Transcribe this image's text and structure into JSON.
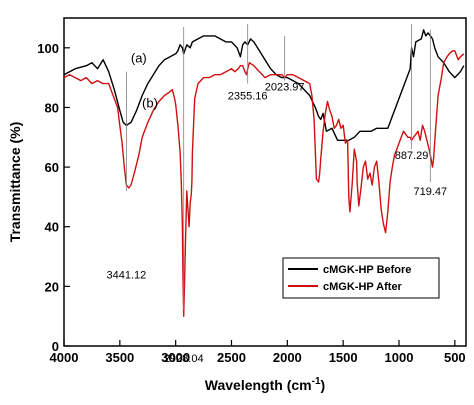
{
  "chart_data": {
    "type": "line",
    "xlabel": "Wavelength (cm",
    "xlabel_sup": "-1",
    "xlabel_tail": ")",
    "ylabel": "Transmittance (%)",
    "xlim": [
      4000,
      400
    ],
    "ylim": [
      0,
      110
    ],
    "x_ticks": [
      4000,
      3500,
      3000,
      2500,
      2000,
      1500,
      1000,
      500
    ],
    "y_ticks": [
      0,
      20,
      40,
      60,
      80,
      100
    ],
    "grid": false,
    "legend_position": "lower-right",
    "series": [
      {
        "name": "cMGK-HP Before",
        "color": "#000000",
        "curve_label": "(a)",
        "x": [
          4000,
          3900,
          3800,
          3750,
          3700,
          3650,
          3600,
          3550,
          3500,
          3470,
          3441,
          3400,
          3350,
          3300,
          3250,
          3200,
          3150,
          3100,
          3050,
          3000,
          2980,
          2960,
          2940,
          2928,
          2900,
          2870,
          2850,
          2800,
          2750,
          2700,
          2650,
          2600,
          2550,
          2500,
          2450,
          2420,
          2400,
          2380,
          2355,
          2330,
          2300,
          2250,
          2200,
          2150,
          2100,
          2050,
          2024,
          2000,
          1950,
          1900,
          1850,
          1800,
          1750,
          1720,
          1700,
          1680,
          1650,
          1600,
          1550,
          1500,
          1450,
          1400,
          1350,
          1300,
          1250,
          1200,
          1150,
          1100,
          1050,
          1000,
          950,
          900,
          887,
          870,
          850,
          800,
          780,
          760,
          740,
          719,
          700,
          680,
          650,
          600,
          550,
          500,
          450,
          420
        ],
        "y": [
          91,
          93,
          94,
          95,
          93,
          96,
          92,
          86,
          79,
          75,
          74,
          75,
          79,
          84,
          88,
          91,
          94,
          96,
          97,
          98,
          99,
          101,
          100,
          98,
          101,
          100,
          102,
          103,
          104,
          104,
          104,
          103,
          102,
          102,
          100,
          97,
          101,
          102,
          101,
          103,
          102,
          99,
          96,
          93,
          91,
          90,
          90,
          90,
          89,
          88,
          86,
          84,
          80,
          77,
          76,
          78,
          72,
          73,
          69,
          69,
          69,
          70,
          72,
          72,
          72,
          73,
          73,
          73,
          78,
          83,
          88,
          93,
          100,
          97,
          102,
          103,
          106,
          104,
          105,
          104,
          103,
          100,
          97,
          95,
          92,
          90,
          92,
          94
        ]
      },
      {
        "name": "cMGK-HP After",
        "color": "#d01010",
        "curve_label": "(b)",
        "x": [
          4000,
          3950,
          3900,
          3850,
          3800,
          3750,
          3700,
          3650,
          3600,
          3560,
          3520,
          3500,
          3480,
          3460,
          3441,
          3420,
          3400,
          3370,
          3330,
          3300,
          3250,
          3200,
          3150,
          3100,
          3060,
          3030,
          3010,
          3000,
          2980,
          2960,
          2950,
          2940,
          2935,
          2928,
          2920,
          2910,
          2900,
          2890,
          2880,
          2870,
          2860,
          2855,
          2850,
          2830,
          2800,
          2750,
          2700,
          2650,
          2600,
          2550,
          2500,
          2470,
          2440,
          2420,
          2400,
          2380,
          2365,
          2355,
          2340,
          2300,
          2250,
          2200,
          2150,
          2100,
          2050,
          2024,
          2000,
          1950,
          1900,
          1850,
          1800,
          1780,
          1760,
          1740,
          1720,
          1710,
          1700,
          1680,
          1660,
          1640,
          1620,
          1600,
          1580,
          1560,
          1540,
          1520,
          1500,
          1480,
          1460,
          1450,
          1440,
          1420,
          1400,
          1380,
          1375,
          1360,
          1340,
          1320,
          1300,
          1280,
          1260,
          1240,
          1220,
          1200,
          1180,
          1160,
          1140,
          1120,
          1100,
          1080,
          1060,
          1040,
          1020,
          1000,
          980,
          960,
          940,
          920,
          900,
          887,
          870,
          850,
          830,
          810,
          790,
          770,
          750,
          730,
          719,
          700,
          690,
          670,
          650,
          620,
          600,
          570,
          550,
          520,
          500,
          470,
          450,
          420
        ],
        "y": [
          90,
          91,
          90,
          89,
          90,
          88,
          89,
          88,
          88,
          84,
          80,
          74,
          68,
          60,
          54,
          53,
          54,
          58,
          64,
          70,
          75,
          79,
          82,
          84,
          85,
          86,
          83,
          81,
          74,
          65,
          55,
          40,
          25,
          10,
          22,
          38,
          52,
          46,
          40,
          48,
          51,
          55,
          65,
          83,
          88,
          90,
          90,
          91,
          91,
          92,
          93,
          92,
          93,
          94,
          94,
          92,
          91,
          93,
          95,
          94,
          92,
          90,
          91,
          91,
          91,
          90,
          91,
          91,
          90,
          89,
          88,
          84,
          76,
          56,
          55,
          58,
          63,
          72,
          78,
          82,
          79,
          77,
          73,
          74,
          76,
          73,
          74,
          68,
          69,
          50,
          45,
          54,
          66,
          62,
          55,
          47,
          53,
          60,
          62,
          56,
          58,
          54,
          60,
          62,
          55,
          46,
          41,
          38,
          45,
          55,
          60,
          64,
          66,
          68,
          70,
          72,
          71,
          70,
          70,
          69,
          70,
          71,
          72,
          69,
          74,
          72,
          69,
          66,
          64,
          60,
          63,
          74,
          84,
          90,
          95,
          97,
          98,
          99,
          99,
          96,
          97,
          98
        ]
      }
    ],
    "peak_labels": [
      {
        "text": "3441.12",
        "x": 3441.12,
        "line_from": 92,
        "line_to": 52,
        "label_y": 24,
        "anchor": "middle"
      },
      {
        "text": "2928.04",
        "x": 2928.04,
        "line_from": 107,
        "line_to": 12,
        "label_y": -4,
        "anchor": "middle"
      },
      {
        "text": "2355.16",
        "x": 2355.16,
        "line_from": 108,
        "line_to": 88,
        "label_y": 84,
        "anchor": "middle"
      },
      {
        "text": "2023.97",
        "x": 2023.97,
        "line_from": 104,
        "line_to": 89,
        "label_y": 87,
        "anchor": "middle"
      },
      {
        "text": "887.29",
        "x": 887.29,
        "line_from": 108,
        "line_to": 66,
        "label_y": 64,
        "anchor": "middle"
      },
      {
        "text": "719.47",
        "x": 719.47,
        "line_from": 106,
        "line_to": 55,
        "label_y": 52,
        "anchor": "middle"
      }
    ],
    "curve_label_positions": [
      {
        "text": "(a)",
        "x": 3330,
        "y": 95
      },
      {
        "text": "(b)",
        "x": 3230,
        "y": 80
      }
    ]
  }
}
